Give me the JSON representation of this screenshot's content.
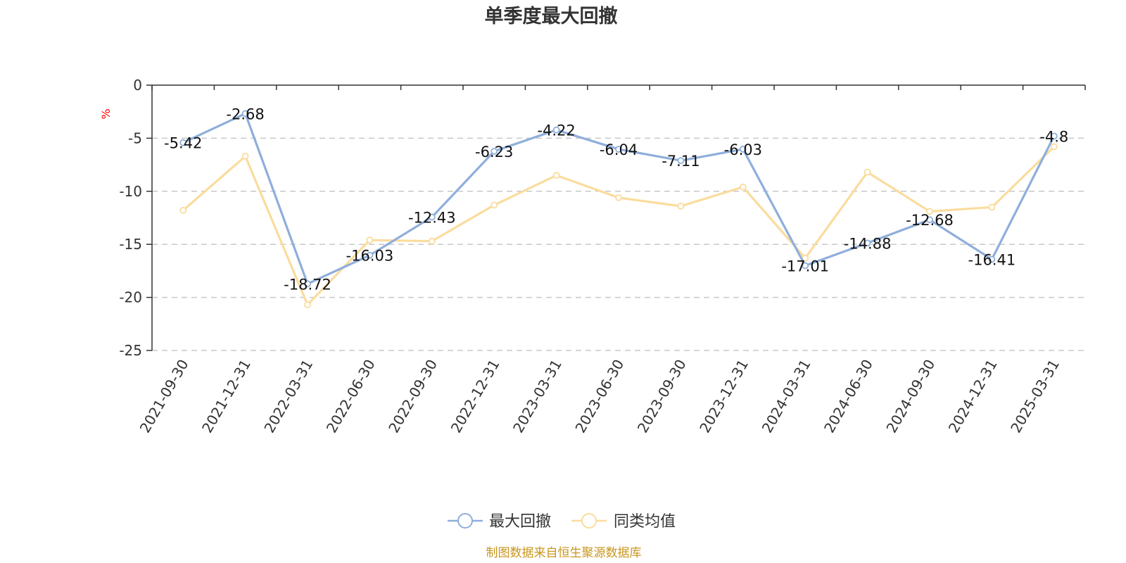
{
  "colors": {
    "series_0": "#8faedb",
    "series_1": "#fadc9d",
    "unit": "#ff0000",
    "source": "#c8961e"
  },
  "icons": {
    "legend_marker": "circle-line-marker"
  },
  "chart_data": {
    "type": "line",
    "title": "单季度最大回撤",
    "ylabel": "%",
    "ylim": [
      -25,
      0
    ],
    "yticks": [
      0,
      -5,
      -10,
      -15,
      -20,
      -25
    ],
    "grid": true,
    "legend_position": "bottom-center",
    "categories": [
      "2021-09-30",
      "2021-12-31",
      "2022-03-31",
      "2022-06-30",
      "2022-09-30",
      "2022-12-31",
      "2023-03-31",
      "2023-06-30",
      "2023-09-30",
      "2023-12-31",
      "2024-03-31",
      "2024-06-30",
      "2024-09-30",
      "2024-12-31",
      "2025-03-31"
    ],
    "series": [
      {
        "name": "最大回撤",
        "values": [
          -5.42,
          -2.68,
          -18.72,
          -16.03,
          -12.43,
          -6.23,
          -4.22,
          -6.04,
          -7.11,
          -6.03,
          -17.01,
          -14.88,
          -12.68,
          -16.41,
          -4.8
        ],
        "labels": [
          "-5.42",
          "-2.68",
          "-18.72",
          "-16.03",
          "-12.43",
          "-6.23",
          "-4.22",
          "-6.04",
          "-7.11",
          "-6.03",
          "-17.01",
          "-14.88",
          "-12.68",
          "-16.41",
          "-4.8"
        ]
      },
      {
        "name": "同类均值",
        "values": [
          -11.8,
          -6.7,
          -20.7,
          -14.6,
          -14.7,
          -11.3,
          -8.5,
          -10.6,
          -11.4,
          -9.6,
          -16.3,
          -8.2,
          -11.9,
          -11.5,
          -5.8
        ]
      }
    ],
    "source": "制图数据来自恒生聚源数据库"
  }
}
